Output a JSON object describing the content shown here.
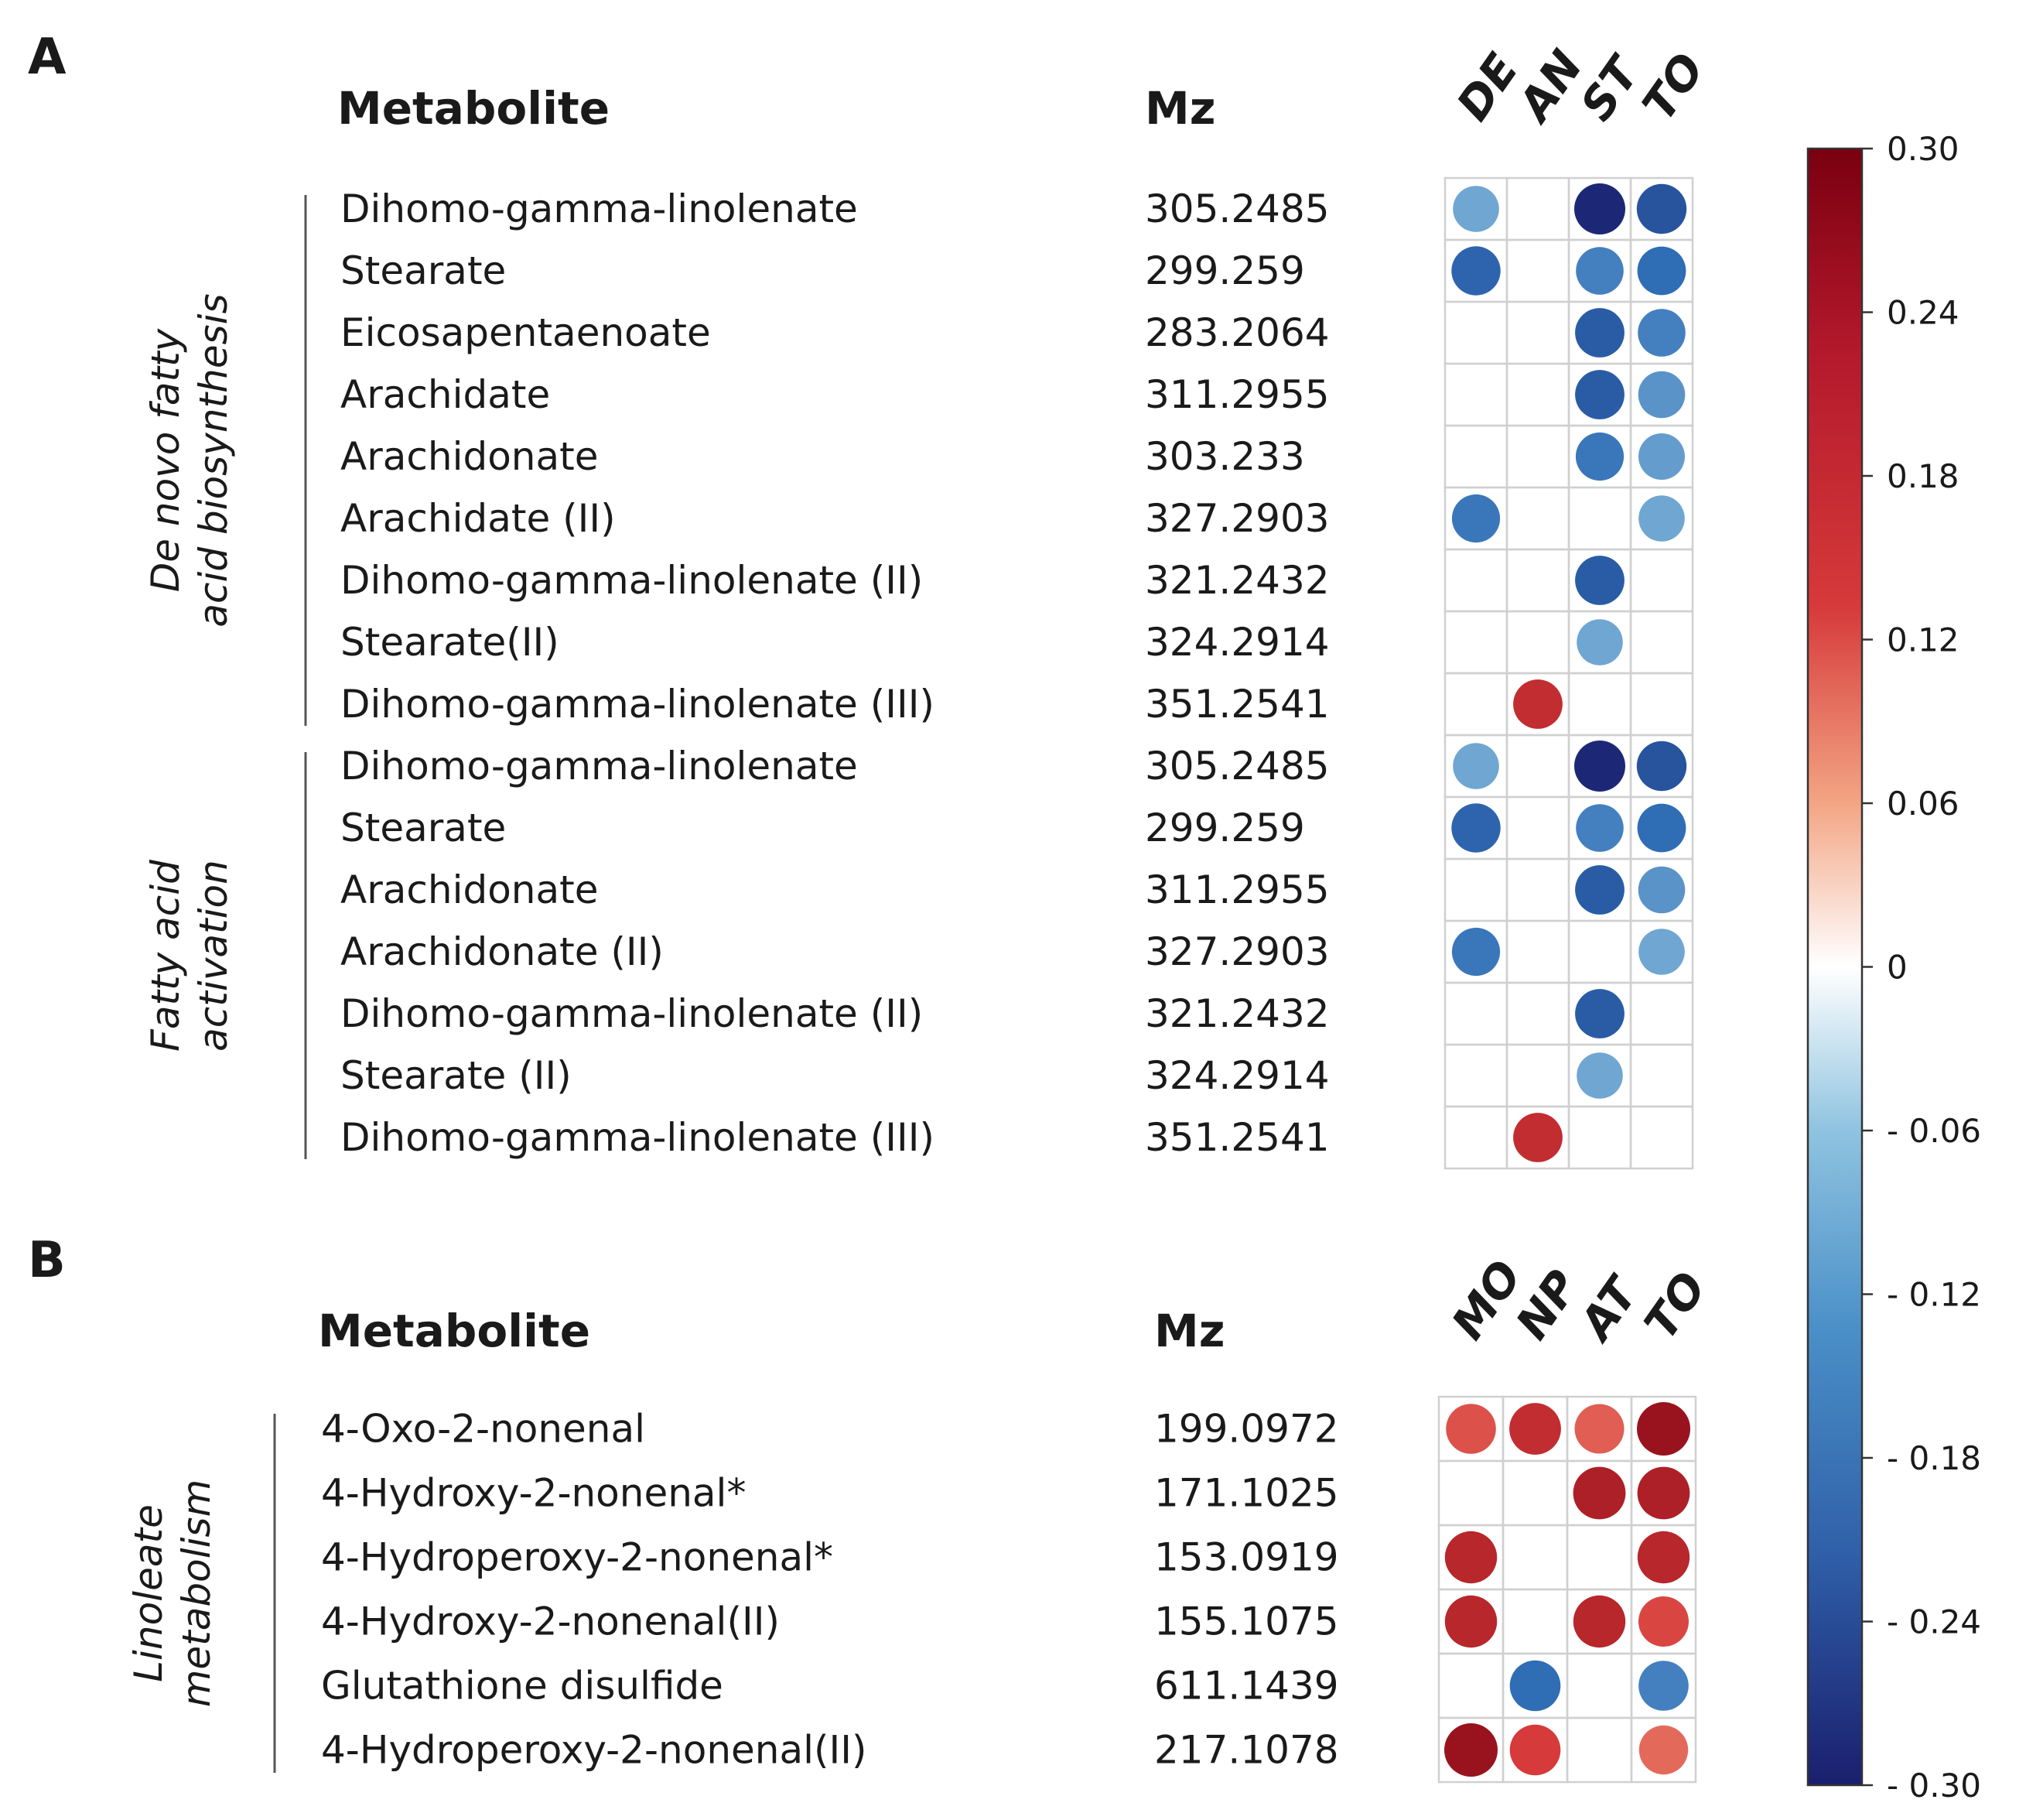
{
  "chart_data": {
    "type": "heatmap",
    "style": "dot-matrix correlation plot",
    "panels": [
      {
        "letter": "A",
        "name_header": "Metabolite",
        "mz_header": "Mz",
        "columns": [
          "DE",
          "AN",
          "ST",
          "TO"
        ],
        "groups": [
          {
            "label": "De novo fatty acid biosynthesis",
            "label_lines": [
              "De novo fatty",
              "acid biosynthesis"
            ],
            "rows": [
              {
                "name": "Dihomo-gamma-linolenate",
                "mz": "305.2485",
                "values": [
                  -0.15,
                  null,
                  -0.29,
                  -0.24
                ]
              },
              {
                "name": "Stearate",
                "mz": "299.259",
                "values": [
                  -0.22,
                  null,
                  -0.19,
                  -0.21
                ]
              },
              {
                "name": "Eicosapentaenoate",
                "mz": "283.2064",
                "values": [
                  null,
                  null,
                  -0.23,
                  -0.19
                ]
              },
              {
                "name": "Arachidate",
                "mz": "311.2955",
                "values": [
                  null,
                  null,
                  -0.23,
                  -0.17
                ]
              },
              {
                "name": "Arachidonate",
                "mz": "303.233",
                "values": [
                  null,
                  null,
                  -0.2,
                  -0.16
                ]
              },
              {
                "name": "Arachidate (II)",
                "mz": "327.2903",
                "values": [
                  -0.2,
                  null,
                  null,
                  -0.15
                ]
              },
              {
                "name": "Dihomo-gamma-linolenate (II)",
                "mz": "321.2432",
                "values": [
                  null,
                  null,
                  -0.23,
                  null
                ]
              },
              {
                "name": "Stearate(II)",
                "mz": "324.2914",
                "values": [
                  null,
                  null,
                  -0.15,
                  null
                ]
              },
              {
                "name": "Dihomo-gamma-linolenate (III)",
                "mz": "351.2541",
                "values": [
                  null,
                  0.23,
                  null,
                  null
                ]
              }
            ]
          },
          {
            "label": "Fatty acid activation",
            "label_lines": [
              "Fatty acid",
              "activation"
            ],
            "rows": [
              {
                "name": "Dihomo-gamma-linolenate",
                "mz": "305.2485",
                "values": [
                  -0.15,
                  null,
                  -0.29,
                  -0.24
                ]
              },
              {
                "name": "Stearate",
                "mz": "299.259",
                "values": [
                  -0.22,
                  null,
                  -0.19,
                  -0.21
                ]
              },
              {
                "name": "Arachidonate",
                "mz": "311.2955",
                "values": [
                  null,
                  null,
                  -0.23,
                  -0.17
                ]
              },
              {
                "name": "Arachidonate (II)",
                "mz": "327.2903",
                "values": [
                  -0.2,
                  null,
                  null,
                  -0.15
                ]
              },
              {
                "name": "Dihomo-gamma-linolenate (II)",
                "mz": "321.2432",
                "values": [
                  null,
                  null,
                  -0.23,
                  null
                ]
              },
              {
                "name": "Stearate (II)",
                "mz": "324.2914",
                "values": [
                  null,
                  null,
                  -0.15,
                  null
                ]
              },
              {
                "name": "Dihomo-gamma-linolenate (III)",
                "mz": "351.2541",
                "values": [
                  null,
                  0.23,
                  null,
                  null
                ]
              }
            ]
          }
        ]
      },
      {
        "letter": "B",
        "name_header": "Metabolite",
        "mz_header": "Mz",
        "columns": [
          "MO",
          "NP",
          "AT",
          "TO"
        ],
        "groups": [
          {
            "label": "Linoleate metabolism",
            "label_lines": [
              "Linoleate",
              "metabolism"
            ],
            "rows": [
              {
                "name": "4-Oxo-2-nonenal",
                "mz": "199.0972",
                "values": [
                  0.19,
                  0.23,
                  0.18,
                  0.27
                ]
              },
              {
                "name": "4-Hydroxy-2-nonenal*",
                "mz": "171.1025",
                "values": [
                  null,
                  null,
                  0.25,
                  0.25
                ]
              },
              {
                "name": "4-Hydroperoxy-2-nonenal*",
                "mz": "153.0919",
                "values": [
                  0.24,
                  null,
                  null,
                  0.24
                ]
              },
              {
                "name": "4-Hydroxy-2-nonenal(II)",
                "mz": "155.1075",
                "values": [
                  0.24,
                  null,
                  0.24,
                  0.2
                ]
              },
              {
                "name": "Glutathione disulfide",
                "mz": "611.1439",
                "values": [
                  null,
                  -0.21,
                  null,
                  -0.19
                ]
              },
              {
                "name": "4-Hydroperoxy-2-nonenal(II)",
                "mz": "217.1078",
                "values": [
                  0.27,
                  0.21,
                  null,
                  0.17
                ]
              }
            ]
          }
        ]
      }
    ],
    "colorbar": {
      "range": [
        -0.3,
        0.3
      ],
      "ticks": [
        0.3,
        0.24,
        0.18,
        0.12,
        0.06,
        0,
        -0.06,
        -0.12,
        -0.18,
        -0.24,
        -0.3
      ],
      "tick_labels": [
        "0.30",
        "0.24",
        "0.18",
        "0.12",
        "0.06",
        "0",
        "- 0.06",
        "- 0.12",
        "- 0.18",
        "- 0.24",
        "- 0.30"
      ],
      "colors": {
        "low": "#1a1f6e",
        "mid_low": "#2f6db5",
        "light_low": "#8fc3e0",
        "center": "#ffffff",
        "light_high": "#f3a584",
        "mid_high": "#d63a3a",
        "high": "#7a0010"
      }
    }
  }
}
